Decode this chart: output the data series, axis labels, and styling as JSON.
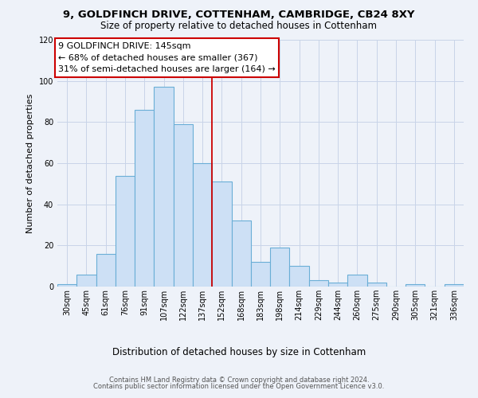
{
  "title": "9, GOLDFINCH DRIVE, COTTENHAM, CAMBRIDGE, CB24 8XY",
  "subtitle": "Size of property relative to detached houses in Cottenham",
  "xlabel": "Distribution of detached houses by size in Cottenham",
  "ylabel": "Number of detached properties",
  "bar_labels": [
    "30sqm",
    "45sqm",
    "61sqm",
    "76sqm",
    "91sqm",
    "107sqm",
    "122sqm",
    "137sqm",
    "152sqm",
    "168sqm",
    "183sqm",
    "198sqm",
    "214sqm",
    "229sqm",
    "244sqm",
    "260sqm",
    "275sqm",
    "290sqm",
    "305sqm",
    "321sqm",
    "336sqm"
  ],
  "bar_values": [
    1,
    6,
    16,
    54,
    86,
    97,
    79,
    60,
    51,
    32,
    12,
    19,
    10,
    3,
    2,
    6,
    2,
    0,
    1,
    0,
    1
  ],
  "bar_color": "#cde0f5",
  "bar_edge_color": "#6aaed6",
  "property_line_x": 7.5,
  "property_line_color": "#cc0000",
  "annotation_text": "9 GOLDFINCH DRIVE: 145sqm\n← 68% of detached houses are smaller (367)\n31% of semi-detached houses are larger (164) →",
  "annotation_box_color": "#ffffff",
  "annotation_box_edge_color": "#cc0000",
  "ylim": [
    0,
    120
  ],
  "yticks": [
    0,
    20,
    40,
    60,
    80,
    100,
    120
  ],
  "footer_line1": "Contains HM Land Registry data © Crown copyright and database right 2024.",
  "footer_line2": "Contains public sector information licensed under the Open Government Licence v3.0.",
  "bg_color": "#eef2f9",
  "plot_bg_color": "#eef2f9",
  "grid_color": "#c8d4e8",
  "title_fontsize": 9.5,
  "subtitle_fontsize": 8.5,
  "ylabel_fontsize": 8,
  "xlabel_fontsize": 8.5,
  "tick_fontsize": 7,
  "footer_fontsize": 6,
  "annot_fontsize": 8
}
